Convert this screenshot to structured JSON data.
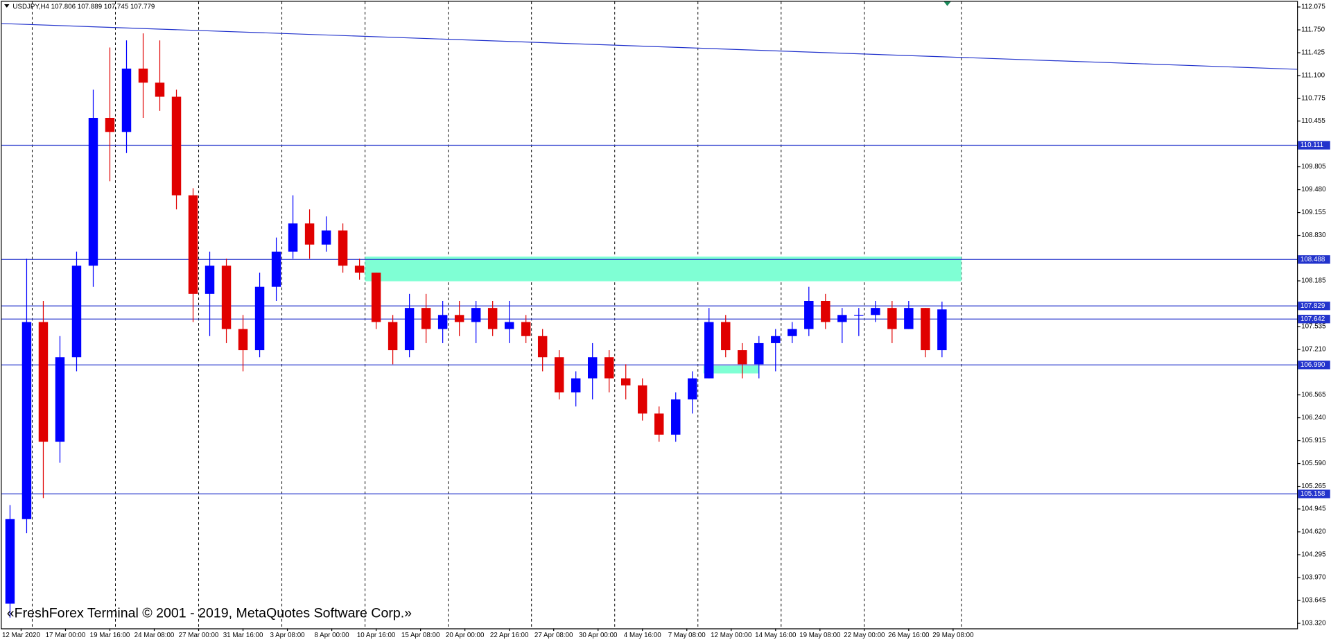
{
  "chart_data": {
    "type": "candlestick",
    "title": "USDJPY,H4  107.806 107.889 107.745 107.779",
    "footer": "«FreshForex Terminal © 2001 - 2019, MetaQuotes Software Corp.»",
    "x": [
      3,
      9,
      15,
      21,
      27,
      33,
      39,
      45,
      51,
      57,
      63,
      69,
      75,
      81,
      87,
      93,
      99,
      105,
      111,
      117,
      123,
      129,
      135,
      141,
      147,
      153,
      159,
      165,
      171,
      177,
      183,
      189,
      195,
      201,
      207,
      213,
      219,
      225,
      231,
      237,
      243,
      249,
      255,
      261,
      267,
      273,
      279,
      285,
      291,
      297,
      303,
      309,
      315,
      321,
      327,
      333,
      339
    ],
    "open": [
      103.6,
      104.8,
      107.6,
      105.9,
      107.1,
      108.4,
      110.5,
      110.3,
      111.2,
      111.0,
      110.8,
      109.4,
      108.0,
      108.4,
      107.5,
      107.2,
      108.1,
      108.6,
      109.0,
      108.7,
      108.9,
      108.4,
      108.3,
      107.6,
      107.2,
      107.8,
      107.5,
      107.7,
      107.6,
      107.8,
      107.5,
      107.6,
      107.4,
      107.1,
      106.6,
      106.8,
      107.1,
      106.8,
      106.7,
      106.3,
      106.0,
      106.5,
      106.8,
      107.6,
      107.2,
      107.0,
      107.3,
      107.4,
      107.5,
      107.9,
      107.6,
      107.7,
      107.7,
      107.8,
      107.5,
      107.8,
      107.2
    ],
    "high": [
      105.0,
      108.5,
      107.9,
      107.4,
      108.6,
      110.9,
      111.5,
      111.6,
      111.7,
      111.6,
      110.9,
      109.5,
      108.6,
      108.5,
      107.7,
      108.3,
      108.8,
      109.4,
      109.2,
      109.1,
      109.0,
      108.5,
      108.3,
      107.7,
      108.0,
      108.0,
      107.9,
      107.9,
      107.9,
      107.9,
      107.9,
      107.7,
      107.5,
      107.2,
      106.9,
      107.3,
      107.2,
      107.0,
      106.8,
      106.4,
      106.6,
      106.9,
      107.8,
      107.7,
      107.3,
      107.4,
      107.5,
      107.6,
      108.1,
      108.0,
      107.8,
      107.8,
      107.9,
      107.9,
      107.9,
      107.8,
      107.889
    ],
    "low": [
      103.4,
      104.6,
      105.1,
      105.6,
      106.9,
      108.1,
      109.6,
      110.0,
      110.5,
      110.6,
      109.2,
      107.6,
      107.4,
      107.3,
      106.9,
      107.1,
      107.9,
      108.5,
      108.5,
      108.6,
      108.3,
      108.2,
      107.5,
      107.0,
      107.1,
      107.3,
      107.3,
      107.4,
      107.3,
      107.4,
      107.3,
      107.3,
      106.9,
      106.5,
      106.4,
      106.5,
      106.6,
      106.5,
      106.2,
      105.9,
      105.9,
      106.3,
      106.8,
      107.1,
      106.8,
      106.8,
      106.9,
      107.3,
      107.4,
      107.5,
      107.3,
      107.4,
      107.6,
      107.3,
      107.5,
      107.1,
      107.1
    ],
    "close": [
      104.8,
      107.6,
      105.9,
      107.1,
      108.4,
      110.5,
      110.3,
      111.2,
      111.0,
      110.8,
      109.4,
      108.0,
      108.4,
      107.5,
      107.2,
      108.1,
      108.6,
      109.0,
      108.7,
      108.9,
      108.4,
      108.3,
      107.6,
      107.2,
      107.8,
      107.5,
      107.7,
      107.6,
      107.8,
      107.5,
      107.6,
      107.4,
      107.1,
      106.6,
      106.8,
      107.1,
      106.8,
      106.7,
      106.3,
      106.0,
      106.5,
      106.8,
      107.6,
      107.2,
      107.0,
      107.3,
      107.4,
      107.5,
      107.9,
      107.6,
      107.7,
      107.7,
      107.8,
      107.5,
      107.8,
      107.2,
      107.779
    ],
    "up_color": "#0000ff",
    "down_color": "#e00000",
    "xlim": [
      0,
      467
    ],
    "ylim": [
      103.26,
      112.15
    ],
    "yticks": [
      112.075,
      {
        "value": 111.75,
        "label": "111.750"
      },
      111.425,
      {
        "value": 111.1,
        "label": "111.100"
      },
      110.775,
      110.455,
      109.805,
      {
        "value": 109.48,
        "label": "109.480"
      },
      109.155,
      {
        "value": 108.83,
        "label": "108.830"
      },
      108.185,
      107.535,
      {
        "value": 107.21,
        "label": "107.210"
      },
      106.565,
      {
        "value": 106.24,
        "label": "106.240"
      },
      105.915,
      {
        "value": 105.59,
        "label": "105.590"
      },
      105.265,
      104.945,
      {
        "value": 104.62,
        "label": "104.620"
      },
      104.295,
      {
        "value": 103.97,
        "label": "103.970"
      },
      103.645,
      {
        "value": 103.32,
        "label": "103.320"
      }
    ],
    "xticks": [
      {
        "value": 7,
        "label": "12 Mar 2020"
      },
      {
        "value": 23,
        "label": "17 Mar 00:00"
      },
      {
        "value": 39,
        "label": "19 Mar 16:00"
      },
      {
        "value": 55,
        "label": "24 Mar 08:00"
      },
      {
        "value": 71,
        "label": "27 Mar 00:00"
      },
      {
        "value": 87,
        "label": "31 Mar 16:00"
      },
      {
        "value": 103,
        "label": "3 Apr 08:00"
      },
      {
        "value": 119,
        "label": "8 Apr 00:00"
      },
      {
        "value": 135,
        "label": "10 Apr 16:00"
      },
      {
        "value": 151,
        "label": "15 Apr 08:00"
      },
      {
        "value": 167,
        "label": "20 Apr 00:00"
      },
      {
        "value": 183,
        "label": "22 Apr 16:00"
      },
      {
        "value": 199,
        "label": "27 Apr 08:00"
      },
      {
        "value": 215,
        "label": "30 Apr 00:00"
      },
      {
        "value": 231,
        "label": "4 May 16:00"
      },
      {
        "value": 247,
        "label": "7 May 08:00"
      },
      {
        "value": 263,
        "label": "12 May 00:00"
      },
      {
        "value": 279,
        "label": "14 May 16:00"
      },
      {
        "value": 295,
        "label": "19 May 08:00"
      },
      {
        "value": 311,
        "label": "22 May 00:00"
      },
      {
        "value": 327,
        "label": "26 May 16:00"
      },
      {
        "value": 343,
        "label": "29 May 08:00"
      }
    ],
    "xgrid": [
      11,
      41,
      71,
      101,
      131,
      161,
      191,
      221,
      251,
      281,
      311,
      346
    ],
    "levels": [
      110.111,
      108.488,
      107.829,
      107.642,
      {
        "value": 106.99,
        "label": "106.990"
      },
      105.158
    ],
    "level_color": "#2233cc",
    "trendline": {
      "x": [
        0,
        467
      ],
      "y": [
        111.84,
        111.19
      ]
    },
    "zones": [
      {
        "x": [
          131,
          346
        ],
        "y": [
          108.179,
          108.529
        ]
      },
      {
        "x": [
          253,
          273
        ],
        "y": [
          106.87,
          106.98
        ]
      }
    ],
    "zone_color": "#7fffd4"
  }
}
